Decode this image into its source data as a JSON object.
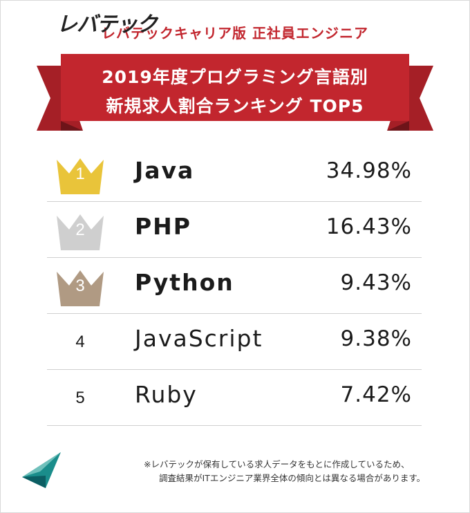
{
  "header": {
    "subtitle": "レバテックキャリア版 正社員エンジニア",
    "title_line1": "2019年度プログラミング言語別",
    "title_line2": "新規求人割合ランキング TOP5"
  },
  "colors": {
    "banner_red": "#c2262e",
    "banner_dark": "#8e1b21",
    "gold": "#e9c43a",
    "silver": "#cfcfcf",
    "bronze": "#b09a83"
  },
  "chart_data": {
    "type": "table",
    "title": "2019年度プログラミング言語別 新規求人割合ランキング TOP5",
    "rows": [
      {
        "rank": "1",
        "language": "Java",
        "share": "34.98%",
        "value": 34.98,
        "crown": "gold"
      },
      {
        "rank": "2",
        "language": "PHP",
        "share": "16.43%",
        "value": 16.43,
        "crown": "silver"
      },
      {
        "rank": "3",
        "language": "Python",
        "share": "9.43%",
        "value": 9.43,
        "crown": "bronze"
      },
      {
        "rank": "4",
        "language": "JavaScript",
        "share": "9.38%",
        "value": 9.38,
        "crown": "none"
      },
      {
        "rank": "5",
        "language": "Ruby",
        "share": "7.42%",
        "value": 7.42,
        "crown": "none"
      }
    ]
  },
  "footer": {
    "logo_text": "レバテック",
    "logo_icon": "levtech-logo-icon",
    "note_line1": "※レバテックが保有している求人データをもとに作成しているため、",
    "note_line2": "調査結果がITエンジニア業界全体の傾向とは異なる場合があります。"
  }
}
